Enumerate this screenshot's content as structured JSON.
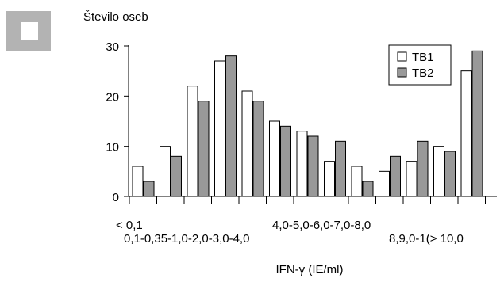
{
  "chart_data": {
    "type": "bar",
    "ylabel": "Število oseb",
    "xlabel": "IFN-γ (IE/ml)",
    "ylim": [
      0,
      30
    ],
    "yticks": [
      0,
      10,
      20,
      30
    ],
    "categories": [
      "< 0,1",
      "0,1-0,35",
      "0,35-1,0",
      "1,0-2,0",
      "2,0-3,0",
      "3,0-4,0",
      "4,0-5,0",
      "5,0-6,0",
      "6,0-7,0",
      "7,0-8,0",
      "8,0-8,9",
      "8,9,0-10",
      "> 10,0"
    ],
    "x_tick_labels_row1": [
      "< 0,1",
      "4,0-5,0-6,0-7,0-8,0"
    ],
    "x_tick_labels_row2": [
      "0,1-0,35-1,0-2,0-3,0-4,0",
      "8,9,0-1(> 10,0"
    ],
    "series": [
      {
        "name": "TB1",
        "color": "#ffffff",
        "values": [
          6,
          10,
          22,
          27,
          21,
          15,
          13,
          7,
          6,
          5,
          7,
          10,
          25
        ]
      },
      {
        "name": "TB2",
        "color": "#999999",
        "values": [
          3,
          8,
          19,
          28,
          19,
          14,
          12,
          11,
          3,
          8,
          11,
          9,
          29
        ]
      }
    ],
    "legend_position": "top-right",
    "grid": false
  }
}
